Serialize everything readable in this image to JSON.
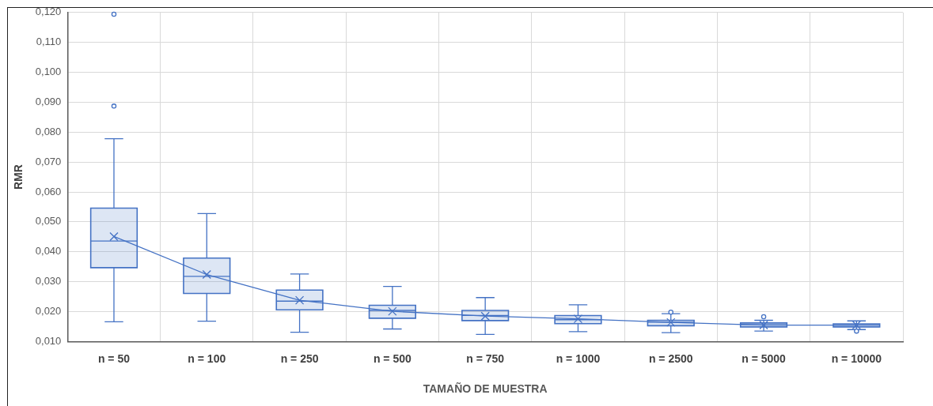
{
  "chart_data": {
    "type": "box",
    "xlabel": "TAMAÑO DE MUESTRA",
    "ylabel": "RMR",
    "categories": [
      "n = 50",
      "n = 100",
      "n = 250",
      "n = 500",
      "n = 750",
      "n = 1000",
      "n = 2500",
      "n = 5000",
      "n = 10000"
    ],
    "ylim": [
      0.01,
      0.12
    ],
    "yticks": [
      {
        "value": 0.01,
        "label": "0,010"
      },
      {
        "value": 0.02,
        "label": "0,020"
      },
      {
        "value": 0.03,
        "label": "0,030"
      },
      {
        "value": 0.04,
        "label": "0,040"
      },
      {
        "value": 0.05,
        "label": "0,050"
      },
      {
        "value": 0.06,
        "label": "0,060"
      },
      {
        "value": 0.07,
        "label": "0,070"
      },
      {
        "value": 0.08,
        "label": "0,080"
      },
      {
        "value": 0.09,
        "label": "0,090"
      },
      {
        "value": 0.1,
        "label": "0,100"
      },
      {
        "value": 0.11,
        "label": "0,110"
      },
      {
        "value": 0.12,
        "label": "0,120"
      }
    ],
    "grid": true,
    "legend": false,
    "series": [
      {
        "color": "#4472c4",
        "boxes": [
          {
            "low": 0.0166,
            "q1": 0.0347,
            "median": 0.0436,
            "q3": 0.0546,
            "high": 0.0778,
            "mean": 0.0451,
            "outliers": [
              0.0887,
              0.1194
            ]
          },
          {
            "low": 0.0168,
            "q1": 0.0261,
            "median": 0.0318,
            "q3": 0.0379,
            "high": 0.0528,
            "mean": 0.0324
          },
          {
            "low": 0.0131,
            "q1": 0.0206,
            "median": 0.0235,
            "q3": 0.0272,
            "high": 0.0326,
            "mean": 0.0238
          },
          {
            "low": 0.0142,
            "q1": 0.0178,
            "median": 0.0204,
            "q3": 0.0221,
            "high": 0.0284,
            "mean": 0.0201
          },
          {
            "low": 0.0124,
            "q1": 0.017,
            "median": 0.0187,
            "q3": 0.0204,
            "high": 0.0247,
            "mean": 0.0185
          },
          {
            "low": 0.0133,
            "q1": 0.016,
            "median": 0.0173,
            "q3": 0.0187,
            "high": 0.0223,
            "mean": 0.0176
          },
          {
            "low": 0.013,
            "q1": 0.0153,
            "median": 0.0165,
            "q3": 0.0171,
            "high": 0.0193,
            "mean": 0.0164,
            "outliers": [
              0.0198
            ]
          },
          {
            "low": 0.0135,
            "q1": 0.0149,
            "median": 0.0156,
            "q3": 0.0162,
            "high": 0.0171,
            "mean": 0.0155,
            "outliers": [
              0.0183
            ]
          },
          {
            "low": 0.014,
            "q1": 0.0149,
            "median": 0.0155,
            "q3": 0.0159,
            "high": 0.0169,
            "mean": 0.0155,
            "outliers": [
              0.0135
            ]
          }
        ]
      },
      {
        "type": "line",
        "color": "#4472c4",
        "marker": "none",
        "values": [
          0.0451,
          0.0324,
          0.0238,
          0.0201,
          0.0185,
          0.0176,
          0.0164,
          0.0155,
          0.0155
        ]
      }
    ]
  }
}
